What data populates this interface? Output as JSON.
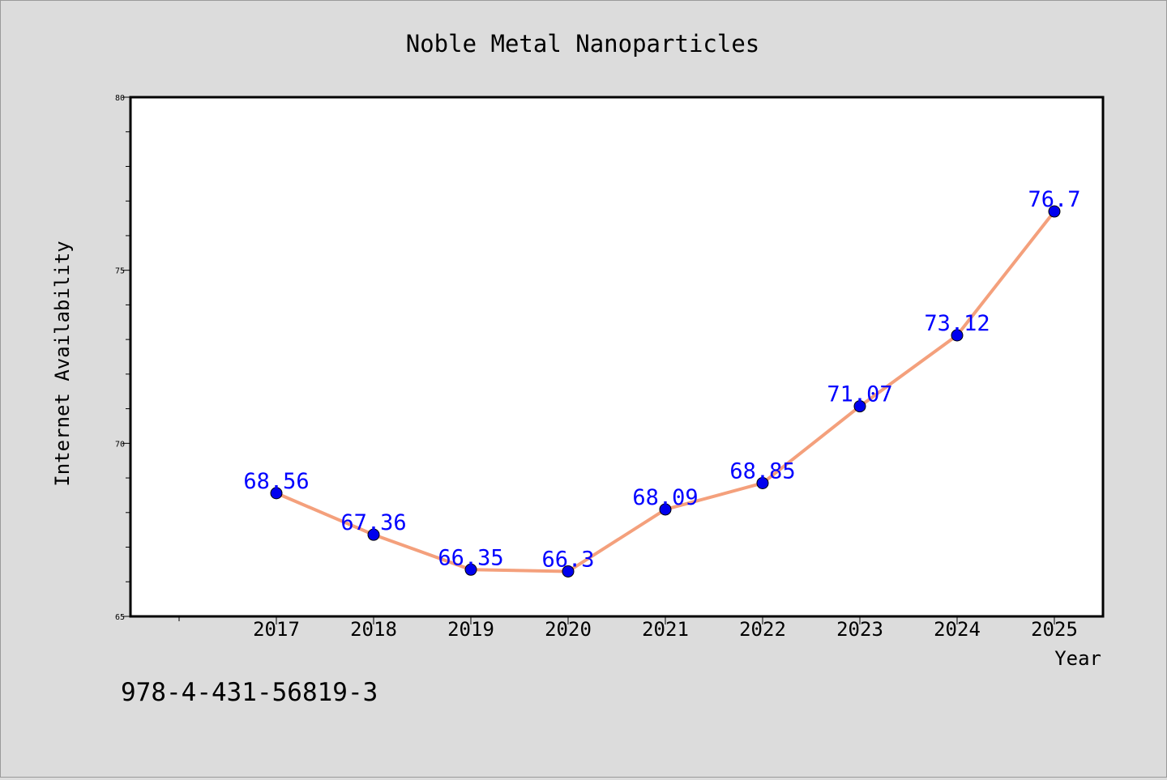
{
  "chart_data": {
    "type": "line",
    "title": "Noble Metal Nanoparticles",
    "xlabel": "Year",
    "ylabel": "Internet Availability",
    "categories": [
      "2017",
      "2018",
      "2019",
      "2020",
      "2021",
      "2022",
      "2023",
      "2024",
      "2025"
    ],
    "series": [
      {
        "values": [
          68.56,
          67.36,
          66.35,
          66.3,
          68.09,
          68.85,
          71.07,
          73.12,
          76.7
        ],
        "data_labels": [
          "68.56",
          "67.36",
          "66.35",
          "66.3",
          "68.09",
          "68.85",
          "71.07",
          "73.12",
          "76.7"
        ]
      }
    ],
    "ylim": [
      65,
      80
    ],
    "y_major_ticks": [
      65,
      70,
      75,
      80
    ],
    "y_minor_step": 1,
    "grid": false,
    "legend": "none",
    "colors": {
      "line": "#f4a07c",
      "marker": "#0000ee",
      "label": "#0000ff",
      "axes": "#000000",
      "background": "#dcdcdc",
      "plot_area": "#ffffff"
    }
  },
  "footnote": "978-4-431-56819-3"
}
